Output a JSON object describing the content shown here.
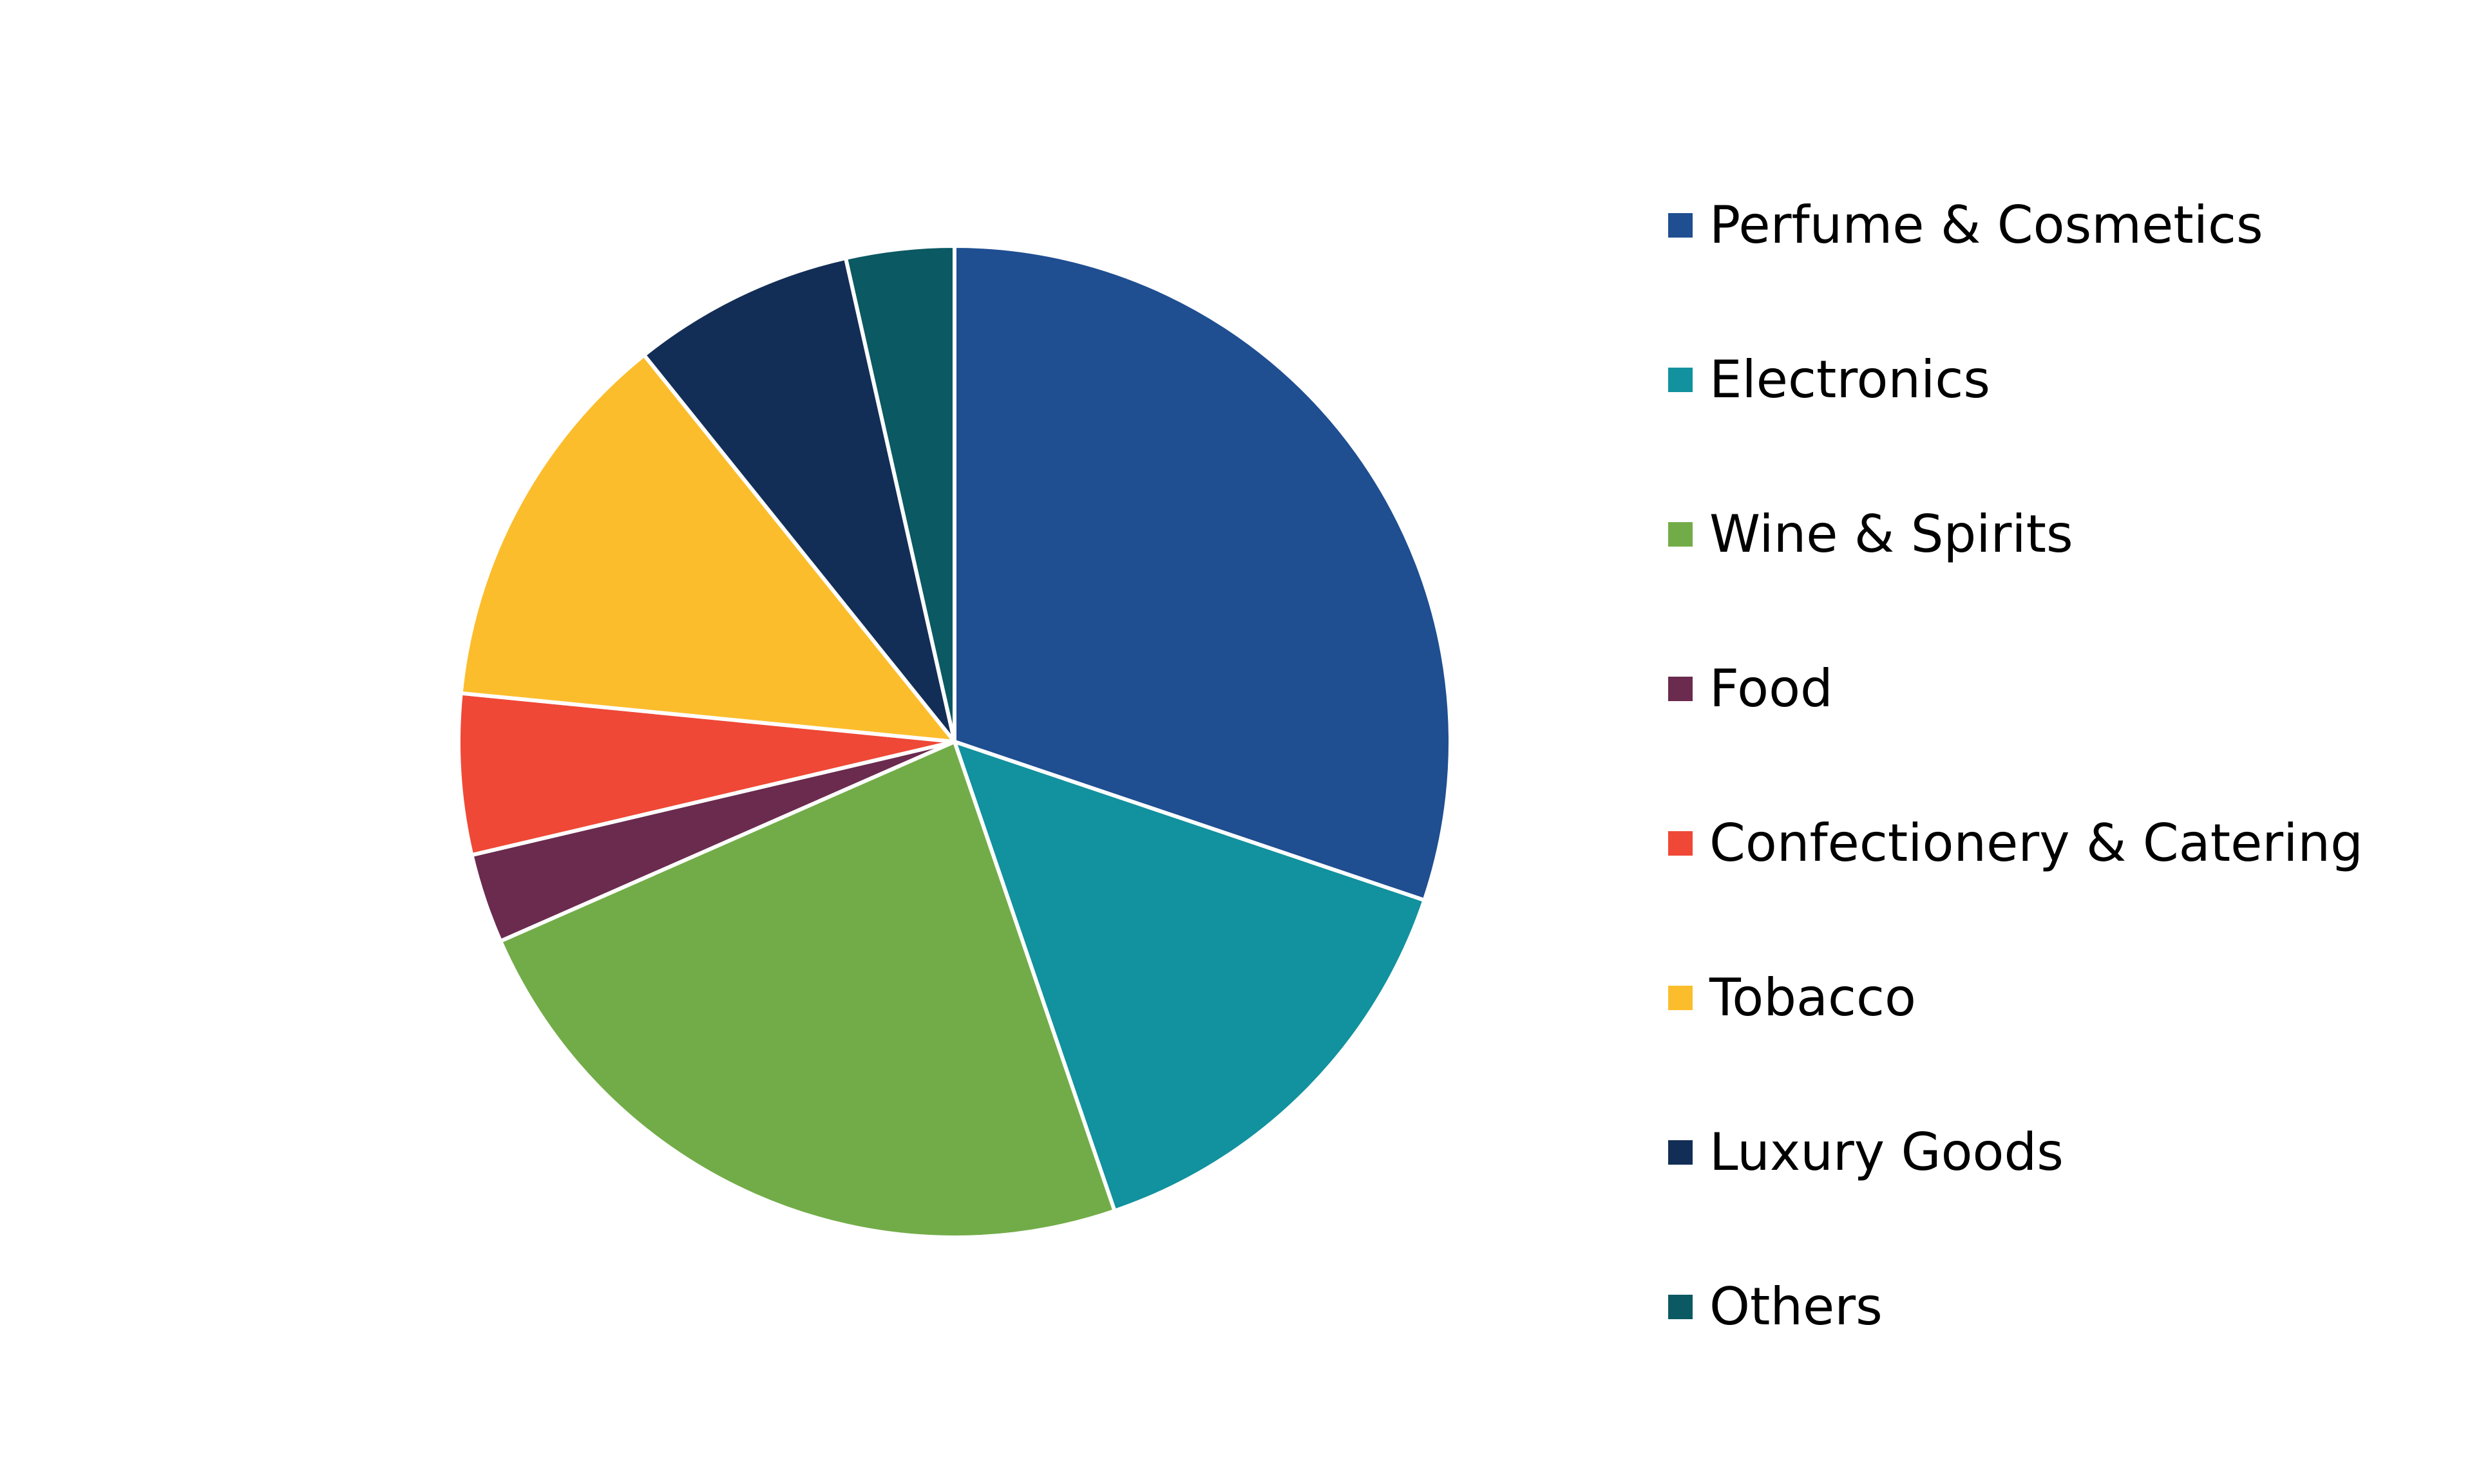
{
  "chart_data": {
    "type": "pie",
    "start_angle": "12 o'clock",
    "direction": "clockwise",
    "legend_position": "right",
    "slices": [
      {
        "label": "Perfume & Cosmetics",
        "value": 30,
        "color": "#1F4E91"
      },
      {
        "label": "Electronics",
        "value": 14.5,
        "color": "#12919E"
      },
      {
        "label": "Wine & Spirits",
        "value": 23.5,
        "color": "#72AC48"
      },
      {
        "label": "Food",
        "value": 2.9,
        "color": "#6A2B4E"
      },
      {
        "label": "Confectionery & Catering",
        "value": 5.2,
        "color": "#EF4836"
      },
      {
        "label": "Tobacco",
        "value": 12.6,
        "color": "#FCBD2D"
      },
      {
        "label": "Luxury Goods",
        "value": 7.2,
        "color": "#132E56"
      },
      {
        "label": "Others",
        "value": 3.5,
        "color": "#0B5962"
      }
    ]
  }
}
